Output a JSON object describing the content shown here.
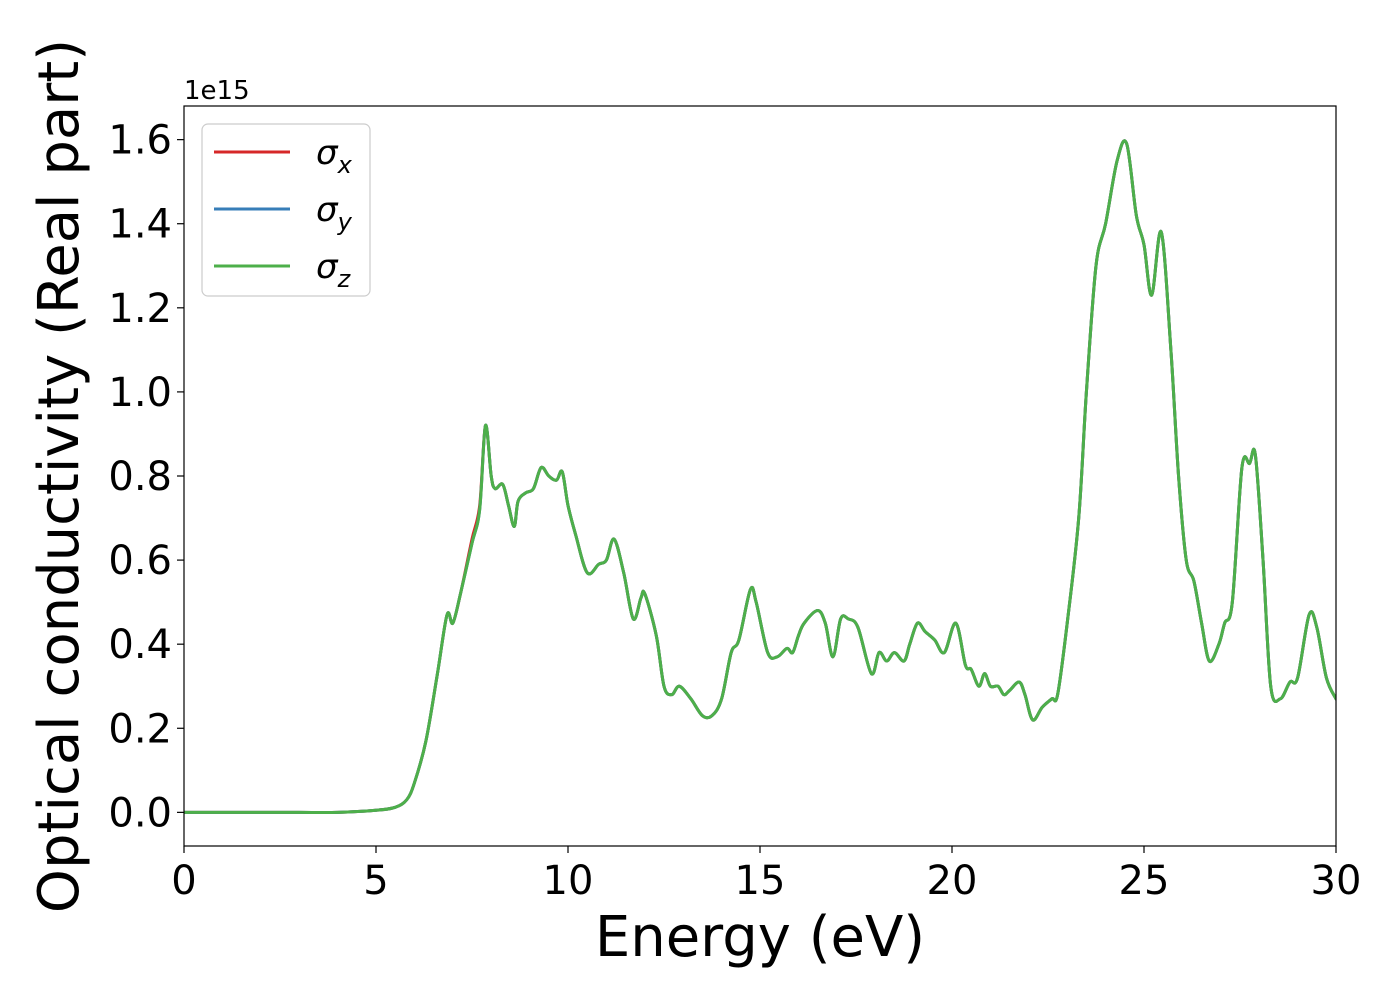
{
  "chart_data": {
    "type": "line",
    "title": "",
    "xlabel": "Energy (eV)",
    "ylabel": "Optical conductivity (Real part)",
    "y_offset_text": "1e15",
    "xlim": [
      0,
      30
    ],
    "ylim": [
      -0.08,
      1.68
    ],
    "xticks": [
      0,
      5,
      10,
      15,
      20,
      25,
      30
    ],
    "xtick_labels": [
      "0",
      "5",
      "10",
      "15",
      "20",
      "25",
      "30"
    ],
    "yticks": [
      0.0,
      0.2,
      0.4,
      0.6,
      0.8,
      1.0,
      1.2,
      1.4,
      1.6
    ],
    "ytick_labels": [
      "0.0",
      "0.2",
      "0.4",
      "0.6",
      "0.8",
      "1.0",
      "1.2",
      "1.4",
      "1.6"
    ],
    "grid": false,
    "legend_position": "top-left",
    "series": [
      {
        "name": "σx",
        "name_base": "σ",
        "name_sub": "x",
        "color": "#d62728",
        "x": [
          0,
          1,
          2,
          3,
          4,
          5,
          5.5,
          5.8,
          6.0,
          6.3,
          6.6,
          6.85,
          7.0,
          7.2,
          7.5,
          7.7,
          7.85,
          8.0,
          8.1,
          8.3,
          8.45,
          8.6,
          8.7,
          8.9,
          9.1,
          9.3,
          9.5,
          9.7,
          9.85,
          10.0,
          10.2,
          10.5,
          10.8,
          11.0,
          11.2,
          11.45,
          11.7,
          11.9,
          12.0,
          12.3,
          12.5,
          12.7,
          12.9,
          13.2,
          13.5,
          13.75,
          14.0,
          14.25,
          14.45,
          14.75,
          14.9,
          15.2,
          15.45,
          15.7,
          15.85,
          16.0,
          16.15,
          16.5,
          16.7,
          16.9,
          17.1,
          17.3,
          17.55,
          17.9,
          18.1,
          18.3,
          18.5,
          18.75,
          18.9,
          19.1,
          19.3,
          19.55,
          19.8,
          20.1,
          20.35,
          20.5,
          20.7,
          20.85,
          21.0,
          21.2,
          21.35,
          21.5,
          21.75,
          21.9,
          22.1,
          22.35,
          22.6,
          22.75,
          23.0,
          23.3,
          23.5,
          23.75,
          24.0,
          24.3,
          24.55,
          24.8,
          25.0,
          25.2,
          25.45,
          25.7,
          25.9,
          26.1,
          26.3,
          26.5,
          26.7,
          26.95,
          27.1,
          27.3,
          27.55,
          27.75,
          27.9,
          28.1,
          28.3,
          28.55,
          28.8,
          29.0,
          29.3,
          29.5,
          29.75,
          30.0
        ],
        "y": [
          0,
          0,
          0,
          0,
          0,
          0.005,
          0.012,
          0.03,
          0.07,
          0.17,
          0.33,
          0.47,
          0.45,
          0.52,
          0.65,
          0.73,
          0.92,
          0.8,
          0.77,
          0.78,
          0.73,
          0.68,
          0.74,
          0.76,
          0.77,
          0.82,
          0.8,
          0.79,
          0.81,
          0.73,
          0.66,
          0.57,
          0.59,
          0.6,
          0.65,
          0.57,
          0.46,
          0.51,
          0.52,
          0.42,
          0.3,
          0.28,
          0.3,
          0.27,
          0.23,
          0.23,
          0.27,
          0.38,
          0.41,
          0.53,
          0.5,
          0.38,
          0.37,
          0.39,
          0.38,
          0.42,
          0.45,
          0.48,
          0.45,
          0.37,
          0.46,
          0.46,
          0.44,
          0.33,
          0.38,
          0.36,
          0.38,
          0.36,
          0.4,
          0.45,
          0.43,
          0.41,
          0.38,
          0.45,
          0.35,
          0.34,
          0.3,
          0.33,
          0.3,
          0.3,
          0.28,
          0.29,
          0.31,
          0.28,
          0.22,
          0.25,
          0.27,
          0.28,
          0.45,
          0.7,
          1.0,
          1.3,
          1.4,
          1.55,
          1.59,
          1.42,
          1.35,
          1.23,
          1.38,
          1.1,
          0.8,
          0.6,
          0.55,
          0.45,
          0.36,
          0.4,
          0.45,
          0.5,
          0.82,
          0.83,
          0.85,
          0.6,
          0.3,
          0.27,
          0.31,
          0.32,
          0.47,
          0.44,
          0.32,
          0.27
        ]
      },
      {
        "name": "σy",
        "name_base": "σ",
        "name_sub": "y",
        "color": "#377eb8",
        "x": [
          0,
          1,
          2,
          3,
          4,
          5,
          5.5,
          5.8,
          6.0,
          6.3,
          6.6,
          6.85,
          7.0,
          7.2,
          7.5,
          7.7,
          7.85,
          8.0,
          8.1,
          8.3,
          8.45,
          8.6,
          8.7,
          8.9,
          9.1,
          9.3,
          9.5,
          9.7,
          9.85,
          10.0,
          10.2,
          10.5,
          10.8,
          11.0,
          11.2,
          11.45,
          11.7,
          11.9,
          12.0,
          12.3,
          12.5,
          12.7,
          12.9,
          13.2,
          13.5,
          13.75,
          14.0,
          14.25,
          14.45,
          14.75,
          14.9,
          15.2,
          15.45,
          15.7,
          15.85,
          16.0,
          16.15,
          16.5,
          16.7,
          16.9,
          17.1,
          17.3,
          17.55,
          17.9,
          18.1,
          18.3,
          18.5,
          18.75,
          18.9,
          19.1,
          19.3,
          19.55,
          19.8,
          20.1,
          20.35,
          20.5,
          20.7,
          20.85,
          21.0,
          21.2,
          21.35,
          21.5,
          21.75,
          21.9,
          22.1,
          22.35,
          22.6,
          22.75,
          23.0,
          23.3,
          23.5,
          23.75,
          24.0,
          24.3,
          24.55,
          24.8,
          25.0,
          25.2,
          25.45,
          25.7,
          25.9,
          26.1,
          26.3,
          26.5,
          26.7,
          26.95,
          27.1,
          27.3,
          27.55,
          27.75,
          27.9,
          28.1,
          28.3,
          28.55,
          28.8,
          29.0,
          29.3,
          29.5,
          29.75,
          30.0
        ],
        "y": [
          0,
          0,
          0,
          0,
          0,
          0.005,
          0.012,
          0.03,
          0.07,
          0.17,
          0.33,
          0.47,
          0.45,
          0.52,
          0.64,
          0.72,
          0.92,
          0.8,
          0.77,
          0.78,
          0.73,
          0.68,
          0.74,
          0.76,
          0.77,
          0.82,
          0.8,
          0.79,
          0.81,
          0.73,
          0.66,
          0.57,
          0.59,
          0.6,
          0.65,
          0.57,
          0.46,
          0.51,
          0.52,
          0.42,
          0.3,
          0.28,
          0.3,
          0.27,
          0.23,
          0.23,
          0.27,
          0.38,
          0.41,
          0.53,
          0.5,
          0.38,
          0.37,
          0.39,
          0.38,
          0.42,
          0.45,
          0.48,
          0.45,
          0.37,
          0.46,
          0.46,
          0.44,
          0.33,
          0.38,
          0.36,
          0.38,
          0.36,
          0.4,
          0.45,
          0.43,
          0.41,
          0.38,
          0.45,
          0.35,
          0.34,
          0.3,
          0.33,
          0.3,
          0.3,
          0.28,
          0.29,
          0.31,
          0.28,
          0.22,
          0.25,
          0.27,
          0.28,
          0.45,
          0.7,
          1.0,
          1.3,
          1.4,
          1.55,
          1.59,
          1.42,
          1.35,
          1.23,
          1.38,
          1.1,
          0.8,
          0.6,
          0.55,
          0.45,
          0.36,
          0.4,
          0.45,
          0.5,
          0.82,
          0.83,
          0.85,
          0.6,
          0.3,
          0.27,
          0.31,
          0.32,
          0.47,
          0.44,
          0.32,
          0.27
        ]
      },
      {
        "name": "σz",
        "name_base": "σ",
        "name_sub": "z",
        "color": "#4daf4a",
        "x": [
          0,
          1,
          2,
          3,
          4,
          5,
          5.5,
          5.8,
          6.0,
          6.3,
          6.6,
          6.85,
          7.0,
          7.2,
          7.5,
          7.7,
          7.85,
          8.0,
          8.1,
          8.3,
          8.45,
          8.6,
          8.7,
          8.9,
          9.1,
          9.3,
          9.5,
          9.7,
          9.85,
          10.0,
          10.2,
          10.5,
          10.8,
          11.0,
          11.2,
          11.45,
          11.7,
          11.9,
          12.0,
          12.3,
          12.5,
          12.7,
          12.9,
          13.2,
          13.5,
          13.75,
          14.0,
          14.25,
          14.45,
          14.75,
          14.9,
          15.2,
          15.45,
          15.7,
          15.85,
          16.0,
          16.15,
          16.5,
          16.7,
          16.9,
          17.1,
          17.3,
          17.55,
          17.9,
          18.1,
          18.3,
          18.5,
          18.75,
          18.9,
          19.1,
          19.3,
          19.55,
          19.8,
          20.1,
          20.35,
          20.5,
          20.7,
          20.85,
          21.0,
          21.2,
          21.35,
          21.5,
          21.75,
          21.9,
          22.1,
          22.35,
          22.6,
          22.75,
          23.0,
          23.3,
          23.5,
          23.75,
          24.0,
          24.3,
          24.55,
          24.8,
          25.0,
          25.2,
          25.45,
          25.7,
          25.9,
          26.1,
          26.3,
          26.5,
          26.7,
          26.95,
          27.1,
          27.3,
          27.55,
          27.75,
          27.9,
          28.1,
          28.3,
          28.55,
          28.8,
          29.0,
          29.3,
          29.5,
          29.75,
          30.0
        ],
        "y": [
          0,
          0,
          0,
          0,
          0,
          0.005,
          0.012,
          0.03,
          0.07,
          0.17,
          0.33,
          0.47,
          0.45,
          0.52,
          0.64,
          0.72,
          0.92,
          0.8,
          0.77,
          0.78,
          0.73,
          0.68,
          0.74,
          0.76,
          0.77,
          0.82,
          0.8,
          0.79,
          0.81,
          0.73,
          0.66,
          0.57,
          0.59,
          0.6,
          0.65,
          0.57,
          0.46,
          0.51,
          0.52,
          0.42,
          0.3,
          0.28,
          0.3,
          0.27,
          0.23,
          0.23,
          0.27,
          0.38,
          0.41,
          0.53,
          0.5,
          0.38,
          0.37,
          0.39,
          0.38,
          0.42,
          0.45,
          0.48,
          0.45,
          0.37,
          0.46,
          0.46,
          0.44,
          0.33,
          0.38,
          0.36,
          0.38,
          0.36,
          0.4,
          0.45,
          0.43,
          0.41,
          0.38,
          0.45,
          0.35,
          0.34,
          0.3,
          0.33,
          0.3,
          0.3,
          0.28,
          0.29,
          0.31,
          0.28,
          0.22,
          0.25,
          0.27,
          0.28,
          0.45,
          0.7,
          1.0,
          1.3,
          1.4,
          1.55,
          1.59,
          1.42,
          1.35,
          1.23,
          1.38,
          1.1,
          0.8,
          0.6,
          0.55,
          0.45,
          0.36,
          0.4,
          0.45,
          0.5,
          0.82,
          0.83,
          0.85,
          0.6,
          0.3,
          0.27,
          0.31,
          0.32,
          0.47,
          0.44,
          0.32,
          0.27
        ]
      }
    ]
  }
}
